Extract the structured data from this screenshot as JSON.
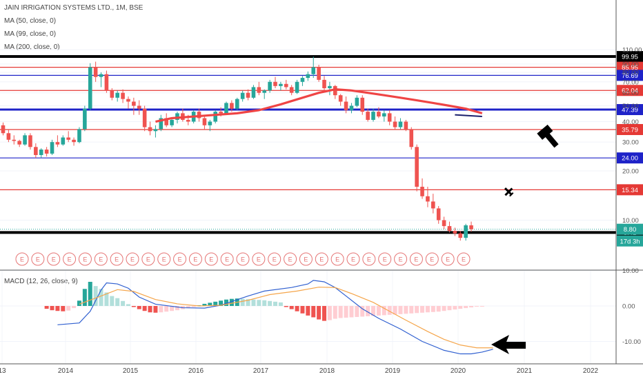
{
  "header": {
    "symbol_title": "JAIN IRRIGATION SYSTEMS LTD., 1M, BSE",
    "indicators": [
      "MA (50, close, 0)",
      "MA (99, close, 0)",
      "MA (200, close, 0)"
    ],
    "macd_label": "MACD (12, 26, close, 9)"
  },
  "colors": {
    "up": "#26a69a",
    "down": "#ef5350",
    "ma": "#ef4444",
    "line_red": "#e53935",
    "line_blue": "#1e22c8",
    "line_black": "#000000",
    "macd": "#2f5fd0",
    "signal": "#f5a54a"
  },
  "chart_data": {
    "type": "candlestick",
    "price_axis": {
      "ticks": [
        "110.00",
        "90.00",
        "80.00",
        "70.00",
        "60.00",
        "50.00",
        "40.00",
        "30.00",
        "20.00",
        "10.00"
      ],
      "scale": "log"
    },
    "x_axis": {
      "ticks": [
        "13",
        "2014",
        "2015",
        "2016",
        "2017",
        "2018",
        "2019",
        "2020",
        "2021",
        "2022"
      ]
    },
    "horizontal_lines": [
      {
        "value": 99.95,
        "label": "99.95",
        "color": "black"
      },
      {
        "value": 85.95,
        "label": "85.95",
        "color": "red"
      },
      {
        "value": 76.69,
        "label": "76.69",
        "color": "blue"
      },
      {
        "value": 62.04,
        "label": "62.04",
        "color": "red"
      },
      {
        "value": 47.39,
        "label": "47.39",
        "color": "blue"
      },
      {
        "value": 35.79,
        "label": "35.79",
        "color": "red"
      },
      {
        "value": 24.0,
        "label": "24.00",
        "color": "blue"
      },
      {
        "value": 15.34,
        "label": "15.34",
        "color": "red"
      },
      {
        "value": 8.41,
        "label": "8.41",
        "color": "black"
      }
    ],
    "last_price": {
      "value": 8.8,
      "label": "8.80",
      "countdown": "17d 3h"
    },
    "candle_start": "2013-06",
    "ohlc": [
      [
        38,
        39.5,
        33,
        34
      ],
      [
        34,
        36,
        30,
        31
      ],
      [
        31,
        33,
        29,
        30.5
      ],
      [
        30.5,
        31,
        28,
        29
      ],
      [
        29,
        34,
        28.5,
        33
      ],
      [
        33,
        34,
        27,
        28
      ],
      [
        28,
        29.5,
        24,
        25
      ],
      [
        25,
        27.5,
        24,
        27
      ],
      [
        27,
        28,
        24.5,
        25.5
      ],
      [
        25.5,
        31,
        25,
        30
      ],
      [
        30,
        33,
        28,
        29
      ],
      [
        29,
        33,
        28.5,
        32
      ],
      [
        32,
        35,
        30,
        31
      ],
      [
        31,
        32,
        28.5,
        30
      ],
      [
        30,
        37,
        29.5,
        36
      ],
      [
        36,
        50,
        35,
        48
      ],
      [
        48,
        91,
        47,
        86
      ],
      [
        86,
        93,
        70,
        75
      ],
      [
        75,
        80,
        65,
        78
      ],
      [
        78,
        82,
        60,
        62
      ],
      [
        62,
        64,
        54,
        56
      ],
      [
        56,
        62,
        53,
        60
      ],
      [
        60,
        63,
        52,
        55
      ],
      [
        55,
        57,
        48,
        53
      ],
      [
        53,
        56,
        44,
        50
      ],
      [
        50,
        54,
        44,
        48
      ],
      [
        48,
        50,
        35,
        37
      ],
      [
        37,
        40,
        33,
        35
      ],
      [
        35,
        38,
        32,
        36
      ],
      [
        36,
        44,
        35,
        42
      ],
      [
        42,
        45,
        37,
        38
      ],
      [
        38,
        42,
        37,
        41
      ],
      [
        41,
        46,
        39,
        45
      ],
      [
        45,
        48,
        40,
        41
      ],
      [
        41,
        44,
        38,
        40
      ],
      [
        40,
        47,
        39,
        46
      ],
      [
        46,
        48,
        40,
        42
      ],
      [
        42,
        43,
        36,
        38
      ],
      [
        38,
        41,
        35,
        40
      ],
      [
        40,
        47,
        39,
        46
      ],
      [
        46,
        49,
        43,
        45
      ],
      [
        45,
        53,
        44,
        52
      ],
      [
        52,
        54,
        46,
        48
      ],
      [
        48,
        56,
        47,
        55
      ],
      [
        55,
        62,
        53,
        60
      ],
      [
        60,
        63,
        54,
        56
      ],
      [
        56,
        67,
        55,
        65
      ],
      [
        65,
        70,
        58,
        60
      ],
      [
        60,
        63,
        55,
        62
      ],
      [
        62,
        72,
        60,
        70
      ],
      [
        70,
        75,
        64,
        66
      ],
      [
        66,
        70,
        62,
        68
      ],
      [
        68,
        72,
        63,
        65
      ],
      [
        65,
        67,
        58,
        60
      ],
      [
        60,
        72,
        59,
        70
      ],
      [
        70,
        76,
        66,
        74
      ],
      [
        74,
        81,
        71,
        78
      ],
      [
        78,
        99.95,
        74,
        86
      ],
      [
        86,
        89,
        70,
        72
      ],
      [
        72,
        76,
        61,
        64
      ],
      [
        64,
        70,
        58,
        66
      ],
      [
        66,
        67,
        55,
        58
      ],
      [
        58,
        59,
        50,
        53
      ],
      [
        53,
        57,
        45,
        47
      ],
      [
        47,
        52,
        45,
        50
      ],
      [
        50,
        58,
        49,
        56
      ],
      [
        56,
        58,
        44,
        46
      ],
      [
        46,
        48,
        40,
        41
      ],
      [
        41,
        48,
        40,
        46
      ],
      [
        46,
        49,
        42,
        43
      ],
      [
        43,
        47,
        40,
        45
      ],
      [
        45,
        47,
        38,
        40
      ],
      [
        40,
        43,
        36,
        37
      ],
      [
        37,
        42,
        36,
        40
      ],
      [
        40,
        41,
        35,
        36
      ],
      [
        36,
        37,
        27,
        28
      ],
      [
        28,
        29,
        15,
        16
      ],
      [
        16,
        18,
        13.5,
        14
      ],
      [
        14,
        16,
        12,
        13
      ],
      [
        13,
        14.5,
        11,
        11.8
      ],
      [
        11.8,
        12.2,
        9.5,
        10
      ],
      [
        10,
        10.5,
        8.8,
        9.2
      ],
      [
        9.2,
        9.8,
        8.4,
        8.6
      ],
      [
        8.6,
        9.0,
        8.0,
        8.3
      ],
      [
        8.3,
        8.6,
        7.5,
        7.8
      ],
      [
        7.8,
        9.5,
        7.5,
        9.3
      ],
      [
        9.3,
        9.8,
        8.5,
        8.8
      ]
    ],
    "ma_line": [
      [
        28,
        40
      ],
      [
        31,
        42
      ],
      [
        35,
        43
      ],
      [
        39,
        44
      ],
      [
        43,
        45
      ],
      [
        47,
        47
      ],
      [
        51,
        51
      ],
      [
        55,
        56
      ],
      [
        58,
        60
      ],
      [
        61,
        63
      ],
      [
        64,
        62
      ],
      [
        67,
        60
      ],
      [
        70,
        58
      ],
      [
        73,
        56
      ],
      [
        76,
        54
      ],
      [
        79,
        52
      ],
      [
        82,
        50
      ],
      [
        85,
        48
      ],
      [
        88,
        45
      ]
    ],
    "drawn_line": [
      [
        83,
        44
      ],
      [
        88,
        43
      ]
    ],
    "earnings_count": 29,
    "earnings_label": "E",
    "macd_axis": {
      "ticks": [
        "10.00",
        "0.00",
        "-10.00"
      ]
    },
    "macd": {
      "macd_line": [
        [
          0,
          -5.3
        ],
        [
          4,
          -4.8
        ],
        [
          6,
          -1.5
        ],
        [
          8,
          4.5
        ],
        [
          9,
          6.5
        ],
        [
          11,
          6.2
        ],
        [
          13,
          5
        ],
        [
          15,
          2.5
        ],
        [
          18,
          0.5
        ],
        [
          23,
          -0.5
        ],
        [
          27,
          -0.6
        ],
        [
          30,
          0.2
        ],
        [
          35,
          2.8
        ],
        [
          38,
          4.2
        ],
        [
          43,
          5.2
        ],
        [
          46,
          6.2
        ],
        [
          47,
          7.2
        ],
        [
          49,
          6.8
        ],
        [
          51,
          5.2
        ],
        [
          53,
          2.8
        ],
        [
          56,
          -0.8
        ],
        [
          59,
          -3.5
        ],
        [
          63,
          -6.5
        ],
        [
          67,
          -10
        ],
        [
          71,
          -12.5
        ],
        [
          74,
          -13.5
        ],
        [
          76,
          -13.5
        ],
        [
          78,
          -13
        ],
        [
          80,
          -12.2
        ]
      ],
      "signal_line": [
        [
          4,
          0.5
        ],
        [
          8,
          2.8
        ],
        [
          11,
          4.6
        ],
        [
          14,
          4.1
        ],
        [
          18,
          1.8
        ],
        [
          22,
          0.6
        ],
        [
          26,
          0
        ],
        [
          30,
          0.2
        ],
        [
          35,
          1.6
        ],
        [
          39,
          3.2
        ],
        [
          44,
          4.2
        ],
        [
          48,
          5.3
        ],
        [
          51,
          5.2
        ],
        [
          54,
          3.5
        ],
        [
          58,
          1
        ],
        [
          61,
          -1.5
        ],
        [
          64,
          -4
        ],
        [
          68,
          -7.2
        ],
        [
          71,
          -9.4
        ],
        [
          74,
          -11
        ],
        [
          77,
          -11.8
        ],
        [
          80,
          -11.8
        ]
      ],
      "histogram": [
        -0.8,
        -1.2,
        -1.4,
        -1.5,
        -1.3,
        -0.6,
        1.5,
        4.8,
        6.8,
        5.6,
        4.8,
        3.8,
        2.8,
        2.2,
        1.4,
        0.5,
        -0.3,
        -0.9,
        -1.4,
        -1.8,
        -1.9,
        -1.8,
        -1.6,
        -1.4,
        -1.2,
        -0.9,
        -0.6,
        -0.3,
        0.2,
        0.6,
        0.9,
        1.2,
        1.5,
        1.8,
        2.0,
        2.1,
        2.0,
        1.9,
        1.8,
        1.7,
        1.6,
        1.4,
        1.2,
        1.0,
        -0.3,
        -0.9,
        -1.5,
        -2.1,
        -2.7,
        -3.2,
        -3.8,
        -4.2,
        -4.0,
        -3.6,
        -3.4,
        -3.3,
        -3.2,
        -3.1,
        -3.0,
        -2.9,
        -2.8,
        -2.7,
        -2.6,
        -2.5,
        -2.4,
        -2.3,
        -2.2,
        -2.1,
        -2.0,
        -1.9,
        -1.8,
        -1.7,
        -1.6,
        -1.4,
        -1.2,
        -1.0,
        -0.8,
        -0.6,
        -0.4,
        -0.2,
        -0.1
      ]
    }
  }
}
